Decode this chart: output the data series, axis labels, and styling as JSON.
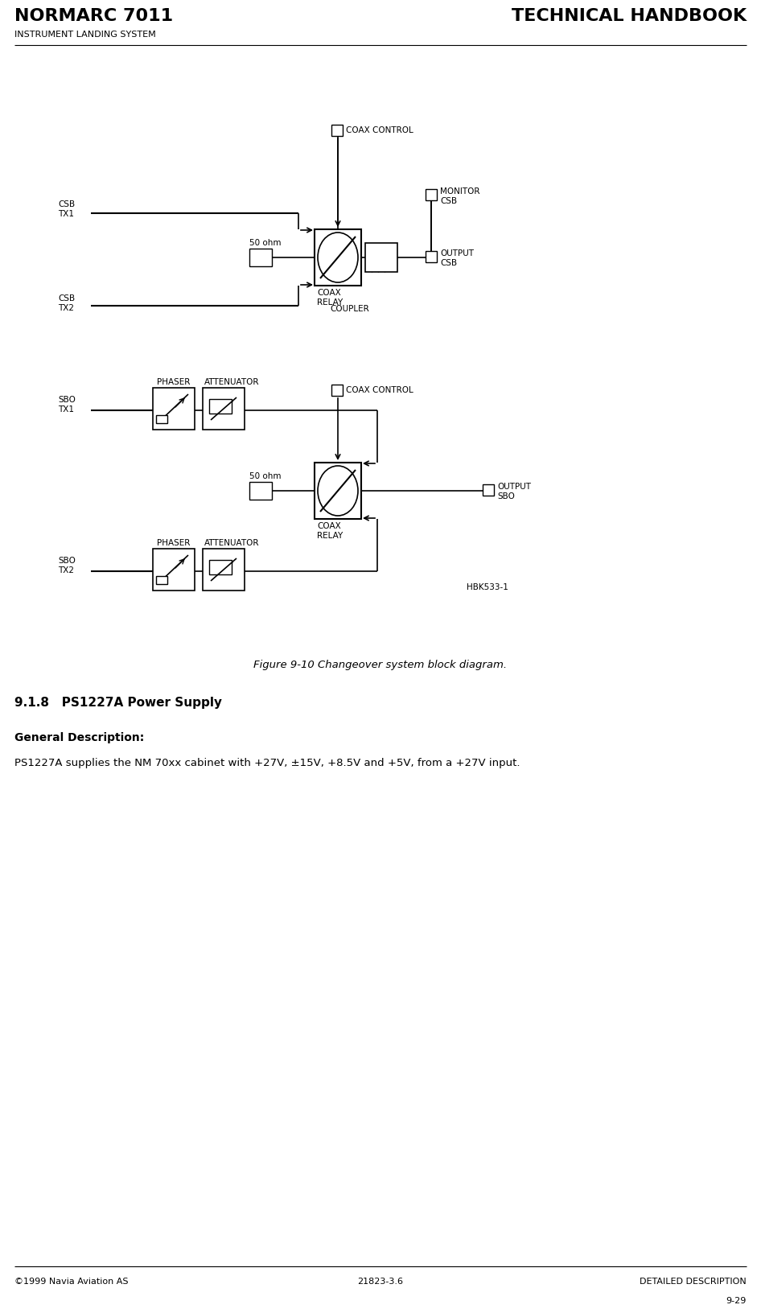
{
  "title_left": "NORMARC 7011",
  "title_right": "TECHNICAL HANDBOOK",
  "subtitle_left": "INSTRUMENT LANDING SYSTEM",
  "footer_left": "©1999 Navia Aviation AS",
  "footer_center": "21823-3.6",
  "footer_right": "DETAILED DESCRIPTION",
  "footer_page": "9-29",
  "figure_caption": "Figure 9-10 Changeover system block diagram.",
  "section_header": "9.1.8   PS1227A Power Supply",
  "section_subheader": "General Description:",
  "section_text": "PS1227A supplies the NM 70xx cabinet with +27V, ±15V, +8.5V and +5V, from a +27V input.",
  "bg_color": "#ffffff",
  "text_color": "#000000"
}
